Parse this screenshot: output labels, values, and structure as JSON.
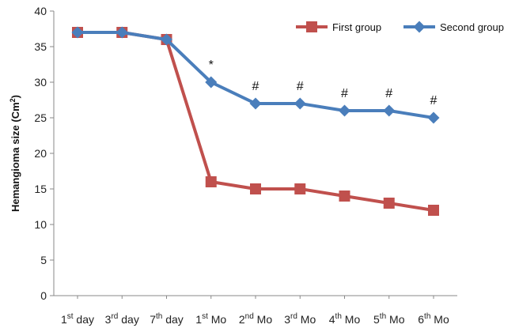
{
  "chart_data": {
    "type": "line",
    "categories": [
      {
        "base": "1",
        "sup": "st",
        "rest": " day"
      },
      {
        "base": "3",
        "sup": "rd",
        "rest": " day"
      },
      {
        "base": "7",
        "sup": "th",
        "rest": " day"
      },
      {
        "base": "1",
        "sup": "st",
        "rest": " Mo"
      },
      {
        "base": "2",
        "sup": "nd",
        "rest": " Mo"
      },
      {
        "base": "3",
        "sup": "rd",
        "rest": " Mo"
      },
      {
        "base": "4",
        "sup": "th",
        "rest": " Mo"
      },
      {
        "base": "5",
        "sup": "th",
        "rest": " Mo"
      },
      {
        "base": "6",
        "sup": "th",
        "rest": " Mo"
      }
    ],
    "series": [
      {
        "name": "First group",
        "marker": "square",
        "color": "#c0504d",
        "values": [
          37,
          37,
          36,
          16,
          15,
          15,
          14,
          13,
          12
        ]
      },
      {
        "name": "Second group",
        "marker": "diamond",
        "color": "#4a7ebb",
        "values": [
          37,
          37,
          36,
          30,
          27,
          27,
          26,
          26,
          25
        ]
      }
    ],
    "ylabel": {
      "text": "Hemangioma size (Cm",
      "sup": "2",
      "suffix": ")"
    },
    "ylim": [
      0,
      40
    ],
    "yticks": [
      0,
      5,
      10,
      15,
      20,
      25,
      30,
      35,
      40
    ],
    "grid": false,
    "legend": "top-right",
    "annotations": [
      {
        "category_index": 3,
        "text": "*"
      },
      {
        "category_index": 4,
        "text": "#"
      },
      {
        "category_index": 5,
        "text": "#"
      },
      {
        "category_index": 6,
        "text": "#"
      },
      {
        "category_index": 7,
        "text": "#"
      },
      {
        "category_index": 8,
        "text": "#"
      }
    ]
  }
}
